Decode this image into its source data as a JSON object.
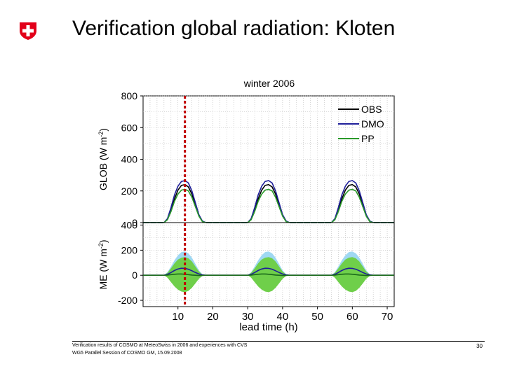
{
  "slide": {
    "title": "Verification global radiation: Kloten",
    "footer_line1": "Verification results of COSMO at MeteoSwiss in 2006 and experiences with CVS",
    "footer_line2": "WG5 Parallel Session of COSMO GM, 15.09.2008",
    "page_number": "30",
    "logo_icon": "swiss-cross-icon",
    "logo_color": "#e2001a"
  },
  "chart_data": [
    {
      "type": "line",
      "title": "winter 2006",
      "ylabel": "GLOB (W m-2)",
      "xlim": [
        0,
        72
      ],
      "ylim": [
        0,
        800
      ],
      "yticks": [
        0,
        200,
        400,
        600,
        800
      ],
      "grid": true,
      "legend_position": "top-right",
      "marker_line": {
        "x": 12,
        "color": "#c00000"
      },
      "x": [
        0,
        6,
        7,
        8,
        9,
        10,
        11,
        12,
        13,
        14,
        15,
        16,
        17,
        18,
        30,
        31,
        32,
        33,
        34,
        35,
        36,
        37,
        38,
        39,
        40,
        41,
        42,
        54,
        55,
        56,
        57,
        58,
        59,
        60,
        61,
        62,
        63,
        64,
        65,
        66,
        72
      ],
      "series": [
        {
          "name": "OBS",
          "color": "#000000",
          "values": [
            0,
            0,
            20,
            80,
            150,
            205,
            235,
            240,
            225,
            180,
            110,
            45,
            8,
            0,
            0,
            20,
            80,
            150,
            205,
            235,
            240,
            225,
            180,
            110,
            45,
            8,
            0,
            0,
            20,
            80,
            150,
            205,
            235,
            240,
            225,
            180,
            110,
            45,
            8,
            0,
            0
          ]
        },
        {
          "name": "DMO",
          "color": "#1f1f9a",
          "values": [
            0,
            0,
            25,
            95,
            175,
            230,
            260,
            265,
            250,
            200,
            125,
            50,
            10,
            0,
            0,
            25,
            95,
            175,
            230,
            260,
            265,
            250,
            200,
            125,
            50,
            10,
            0,
            0,
            25,
            95,
            175,
            230,
            260,
            265,
            250,
            200,
            125,
            50,
            10,
            0,
            0
          ]
        },
        {
          "name": "PP",
          "color": "#2a9a2a",
          "values": [
            0,
            0,
            18,
            70,
            135,
            180,
            205,
            210,
            200,
            160,
            100,
            40,
            6,
            0,
            0,
            18,
            70,
            135,
            180,
            205,
            210,
            200,
            160,
            100,
            40,
            6,
            0,
            0,
            18,
            70,
            135,
            180,
            205,
            210,
            200,
            160,
            100,
            40,
            6,
            0,
            0
          ]
        }
      ]
    },
    {
      "type": "area",
      "ylabel": "ME (W m-2)",
      "xlabel": "lead time (h)",
      "xlim": [
        0,
        72
      ],
      "ylim": [
        -250,
        420
      ],
      "xticks": [
        10,
        20,
        30,
        40,
        50,
        60,
        70
      ],
      "yticks": [
        -200,
        0,
        200,
        400
      ],
      "grid": true,
      "marker_line": {
        "x": 12,
        "color": "#c00000"
      },
      "x": [
        0,
        6,
        7,
        8,
        9,
        10,
        11,
        12,
        13,
        14,
        15,
        16,
        17,
        18,
        30,
        31,
        32,
        33,
        34,
        35,
        36,
        37,
        38,
        39,
        40,
        41,
        42,
        54,
        55,
        56,
        57,
        58,
        59,
        60,
        61,
        62,
        63,
        64,
        65,
        66,
        72
      ],
      "bands": [
        {
          "name": "DMO spread",
          "color": "#9fd8f2",
          "upper": [
            0,
            0,
            25,
            70,
            120,
            160,
            185,
            190,
            175,
            140,
            90,
            40,
            8,
            0,
            0,
            25,
            70,
            120,
            160,
            185,
            190,
            175,
            140,
            90,
            40,
            8,
            0,
            0,
            25,
            70,
            120,
            160,
            185,
            190,
            175,
            140,
            90,
            40,
            8,
            0,
            0
          ],
          "lower": [
            0,
            0,
            -15,
            -45,
            -75,
            -100,
            -110,
            -115,
            -110,
            -90,
            -60,
            -25,
            -5,
            0,
            0,
            -15,
            -45,
            -75,
            -100,
            -110,
            -115,
            -110,
            -90,
            -60,
            -25,
            -5,
            0,
            0,
            -15,
            -45,
            -75,
            -100,
            -110,
            -115,
            -110,
            -90,
            -60,
            -25,
            -5,
            0,
            0
          ]
        },
        {
          "name": "PP spread",
          "color": "#6fcf4a",
          "upper": [
            0,
            0,
            20,
            55,
            95,
            125,
            140,
            145,
            135,
            110,
            70,
            30,
            6,
            0,
            0,
            20,
            55,
            95,
            125,
            140,
            145,
            135,
            110,
            70,
            30,
            6,
            0,
            0,
            20,
            55,
            95,
            125,
            140,
            145,
            135,
            110,
            70,
            30,
            6,
            0,
            0
          ],
          "lower": [
            0,
            0,
            -20,
            -55,
            -90,
            -115,
            -130,
            -135,
            -125,
            -100,
            -65,
            -28,
            -6,
            0,
            0,
            -20,
            -55,
            -90,
            -115,
            -130,
            -135,
            -125,
            -100,
            -65,
            -28,
            -6,
            0,
            0,
            -20,
            -55,
            -90,
            -115,
            -130,
            -135,
            -125,
            -100,
            -65,
            -28,
            -6,
            0,
            0
          ]
        }
      ],
      "series": [
        {
          "name": "DMO",
          "color": "#1f1f9a",
          "values": [
            0,
            0,
            8,
            22,
            38,
            50,
            56,
            55,
            48,
            36,
            22,
            10,
            3,
            0,
            0,
            8,
            22,
            38,
            50,
            56,
            55,
            48,
            36,
            22,
            10,
            3,
            0,
            0,
            8,
            22,
            38,
            50,
            56,
            55,
            48,
            36,
            22,
            10,
            3,
            0,
            0
          ]
        },
        {
          "name": "PP",
          "color": "#1a6a1a",
          "values": [
            0,
            0,
            2,
            5,
            8,
            10,
            10,
            8,
            5,
            2,
            0,
            -2,
            -1,
            0,
            0,
            2,
            5,
            8,
            10,
            10,
            8,
            5,
            2,
            0,
            -2,
            -1,
            0,
            0,
            2,
            5,
            8,
            10,
            10,
            8,
            5,
            2,
            0,
            -2,
            -1,
            0,
            0
          ]
        }
      ]
    }
  ]
}
